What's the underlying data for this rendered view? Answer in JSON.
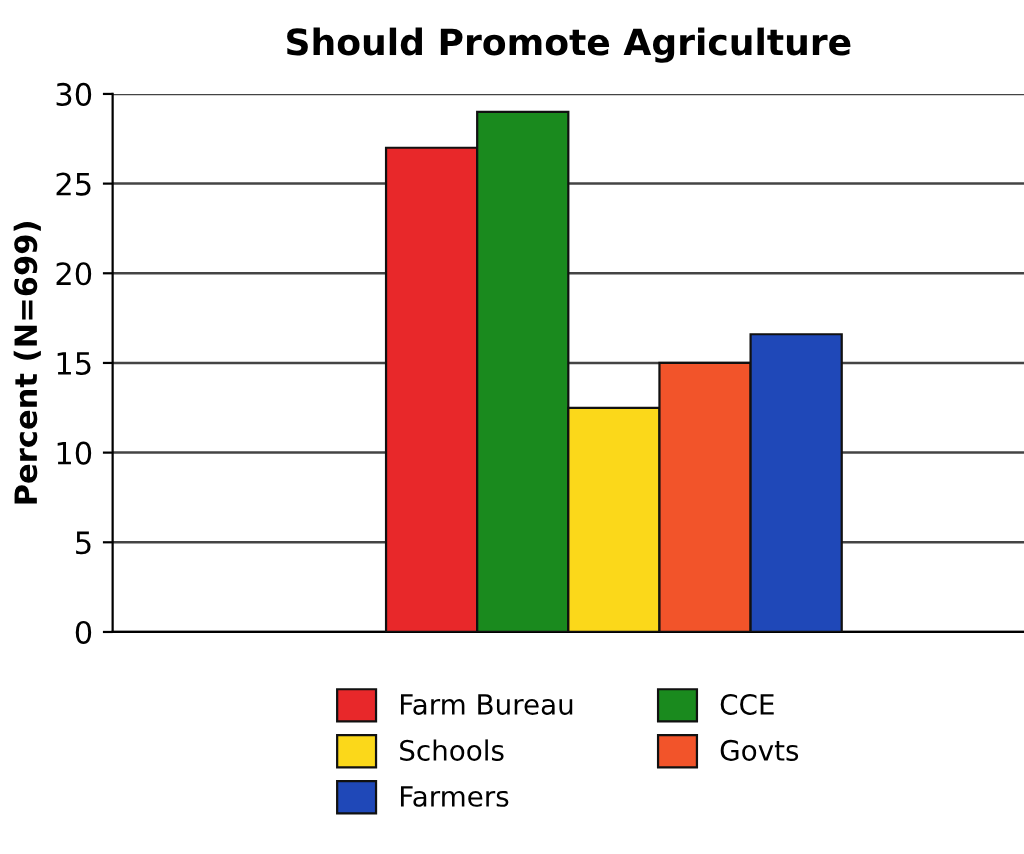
{
  "chart_data": {
    "type": "bar",
    "title": "Should Promote Agriculture",
    "ylabel": "Percent (N=699)",
    "categories": [
      null,
      null,
      null,
      null,
      null,
      null,
      null,
      null,
      null,
      null
    ],
    "stacked": true,
    "series": [
      {
        "name": "Farm Bureau",
        "color": "#e8282a",
        "values": [
          null,
          null,
          null,
          27,
          null,
          null,
          null,
          null,
          null,
          null
        ]
      },
      {
        "name": "CCE",
        "color": "#1a8a1e",
        "values": [
          null,
          null,
          null,
          null,
          29,
          null,
          null,
          null,
          null,
          null
        ]
      },
      {
        "name": "Schools",
        "color": "#fbd81a",
        "values": [
          null,
          null,
          null,
          null,
          null,
          12.5,
          null,
          null,
          null,
          null
        ]
      },
      {
        "name": "Govts",
        "color": "#f2542a",
        "values": [
          null,
          null,
          null,
          null,
          null,
          null,
          15,
          null,
          null,
          null
        ]
      },
      {
        "name": "Farmers",
        "color": "#1f48b8",
        "values": [
          null,
          null,
          null,
          null,
          null,
          null,
          null,
          16.6,
          null,
          null
        ]
      }
    ],
    "ylim": [
      0,
      30
    ],
    "yticks": [
      0,
      5,
      10,
      15,
      20,
      25,
      30
    ],
    "grid": "y",
    "legend": "bottom",
    "tick_labels": "y"
  }
}
